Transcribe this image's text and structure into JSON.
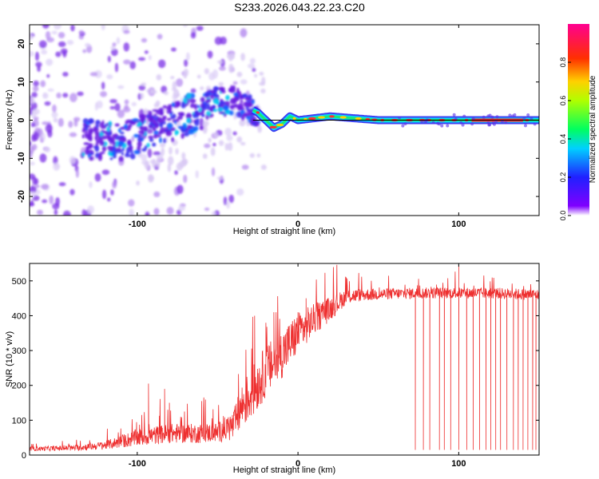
{
  "figure": {
    "title": "S233.2026.043.22.23.C20"
  },
  "chart_data": [
    {
      "type": "heatmap",
      "title": "S233.2026.043.22.23.C20",
      "xlabel": "Height of straight line (km)",
      "ylabel": "Frequency (Hz)",
      "xlim": [
        -167,
        150
      ],
      "ylim": [
        -25,
        25
      ],
      "xticks": [
        -100,
        0,
        100
      ],
      "yticks": [
        -20,
        -10,
        0,
        10,
        20
      ],
      "xtick_labels": [
        "-100",
        "0",
        "100"
      ],
      "ytick_labels": [
        "-20",
        "-10",
        "0",
        "10",
        "20"
      ],
      "colorbar": {
        "label": "Normalized spectral amplitude",
        "range": [
          0,
          1
        ],
        "ticks": [
          0.0,
          0.2,
          0.4,
          0.6,
          0.8
        ],
        "tick_labels": [
          "0.0",
          "0.2",
          "0.4",
          "0.6",
          "0.8"
        ],
        "colormap": "rainbow (violet-blue-cyan-green-yellow-red-magenta)"
      },
      "center_frequency_track": [
        {
          "x": -130,
          "y": -5
        },
        {
          "x": -110,
          "y": -6
        },
        {
          "x": -100,
          "y": -4
        },
        {
          "x": -90,
          "y": -2
        },
        {
          "x": -80,
          "y": -1
        },
        {
          "x": -70,
          "y": 1
        },
        {
          "x": -60,
          "y": 3
        },
        {
          "x": -50,
          "y": 5
        },
        {
          "x": -40,
          "y": 5
        },
        {
          "x": -30,
          "y": 3
        },
        {
          "x": -25,
          "y": 2
        },
        {
          "x": -20,
          "y": 0
        },
        {
          "x": -15,
          "y": -2
        },
        {
          "x": -10,
          "y": -1
        },
        {
          "x": -5,
          "y": 1
        },
        {
          "x": 0,
          "y": 0
        },
        {
          "x": 10,
          "y": 0.5
        },
        {
          "x": 20,
          "y": 1
        },
        {
          "x": 50,
          "y": 0
        },
        {
          "x": 100,
          "y": 0
        },
        {
          "x": 150,
          "y": 0
        }
      ],
      "colors": {
        "line": "#000000",
        "peak": "#ff2020",
        "mid": "#00e060",
        "low": "#6020e0",
        "faint": "#d8c8f4"
      }
    },
    {
      "type": "line",
      "xlabel": "Height of straight line (km)",
      "ylabel": "SNR (10 * v/v)",
      "xlim": [
        -167,
        150
      ],
      "ylim": [
        0,
        550
      ],
      "xticks": [
        -100,
        0,
        100
      ],
      "yticks": [
        0,
        100,
        200,
        300,
        400,
        500
      ],
      "xtick_labels": [
        "-100",
        "0",
        "100"
      ],
      "ytick_labels": [
        "0",
        "100",
        "200",
        "300",
        "400",
        "500"
      ],
      "series": [
        {
          "name": "SNR",
          "color": "#ee3030",
          "envelope": {
            "x": [
              -167,
              -140,
              -120,
              -100,
              -80,
              -60,
              -50,
              -40,
              -35,
              -30,
              -20,
              -10,
              0,
              10,
              20,
              30,
              40,
              60,
              80,
              100,
              120,
              150
            ],
            "mean": [
              18,
              20,
              28,
              50,
              62,
              62,
              65,
              85,
              140,
              170,
              240,
              290,
              350,
              390,
              420,
              455,
              460,
              463,
              465,
              465,
              465,
              460
            ],
            "noise": [
              6,
              8,
              12,
              25,
              28,
              28,
              28,
              45,
              65,
              75,
              75,
              70,
              60,
              45,
              35,
              22,
              18,
              16,
              16,
              16,
              16,
              16
            ]
          },
          "spikes": [
            {
              "x": -93,
              "y": 205
            },
            {
              "x": -83,
              "y": 190
            },
            {
              "x": -80,
              "y": 150
            },
            {
              "x": -60,
              "y": 155
            },
            {
              "x": -27,
              "y": 400
            },
            {
              "x": -20,
              "y": 380
            },
            {
              "x": -15,
              "y": 410
            },
            {
              "x": 0,
              "y": 410
            },
            {
              "x": 5,
              "y": 450
            },
            {
              "x": 30,
              "y": 510
            },
            {
              "x": 100,
              "y": 545
            }
          ],
          "dropouts": [
            73,
            78,
            82,
            88,
            91,
            95,
            100,
            105,
            109,
            113,
            117,
            120,
            123,
            126,
            130,
            134,
            137,
            140,
            143,
            146,
            148
          ],
          "dropout_value": 15
        }
      ]
    }
  ]
}
